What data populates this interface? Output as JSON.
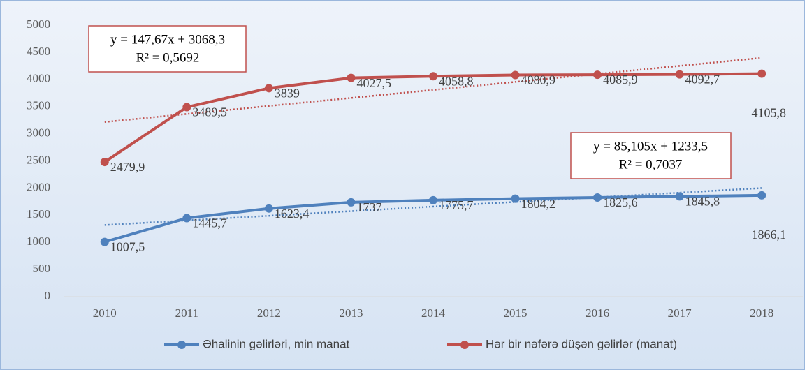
{
  "chart_data": {
    "type": "line",
    "categories": [
      "2010",
      "2011",
      "2012",
      "2013",
      "2014",
      "2015",
      "2016",
      "2017",
      "2018"
    ],
    "series": [
      {
        "name": "Əhalinin gəlirləri, min manat",
        "color": "#4f81bd",
        "values": [
          1007.5,
          1445.7,
          1623.4,
          1737,
          1775.7,
          1804.2,
          1825.6,
          1845.8,
          1866.1
        ],
        "value_labels": [
          "1007,5",
          "1445,7",
          "1623,4",
          "1737",
          "1775,7",
          "1804,2",
          "1825,6",
          "1845,8",
          "1866,1"
        ],
        "trendline": {
          "equation": "y = 85,105x + 1233,5",
          "r2": "R² = 0,7037"
        }
      },
      {
        "name": "Hər  bir nəfərə düşən gəlirlər (manat)",
        "color": "#c0504d",
        "values": [
          2479.9,
          3489.5,
          3839,
          4027.5,
          4058.8,
          4080.9,
          4085.9,
          4092.7,
          4105.8
        ],
        "value_labels": [
          "2479,9",
          "3489,5",
          "3839",
          "4027,5",
          "4058,8",
          "4080,9",
          "4085,9",
          "4092,7",
          "4105,8"
        ],
        "trendline": {
          "equation": "y = 147,67x + 3068,3",
          "r2": "R² = 0,5692"
        }
      }
    ],
    "ylim": [
      0,
      5000
    ],
    "yticks": [
      0,
      500,
      1000,
      1500,
      2000,
      2500,
      3000,
      3500,
      4000,
      4500,
      5000
    ],
    "legend": "bottom"
  }
}
